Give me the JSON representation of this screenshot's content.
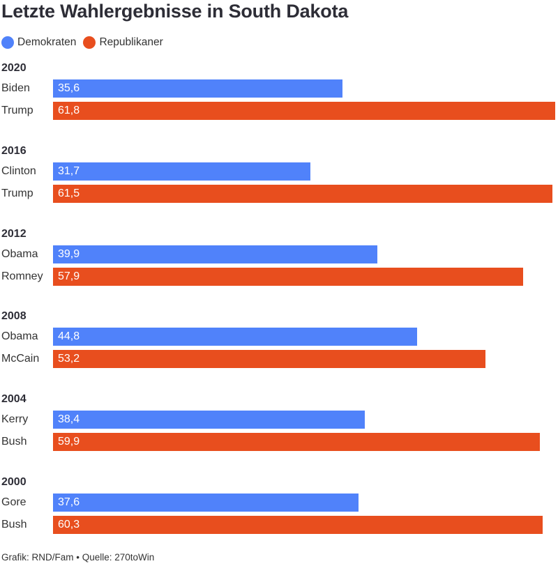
{
  "title": "Letzte Wahlergebnisse in South Dakota",
  "legend": [
    {
      "name": "Demokraten",
      "color": "#5082fa"
    },
    {
      "name": "Republikaner",
      "color": "#e84e1e"
    }
  ],
  "chart_data": {
    "type": "bar",
    "orientation": "horizontal",
    "xlim": [
      0,
      62
    ],
    "groups": [
      {
        "year": "2020",
        "bars": [
          {
            "candidate": "Biden",
            "party": "Demokraten",
            "value": 35.6,
            "label": "35,6"
          },
          {
            "candidate": "Trump",
            "party": "Republikaner",
            "value": 61.8,
            "label": "61,8"
          }
        ]
      },
      {
        "year": "2016",
        "bars": [
          {
            "candidate": "Clinton",
            "party": "Demokraten",
            "value": 31.7,
            "label": "31,7"
          },
          {
            "candidate": "Trump",
            "party": "Republikaner",
            "value": 61.5,
            "label": "61,5"
          }
        ]
      },
      {
        "year": "2012",
        "bars": [
          {
            "candidate": "Obama",
            "party": "Demokraten",
            "value": 39.9,
            "label": "39,9"
          },
          {
            "candidate": "Romney",
            "party": "Republikaner",
            "value": 57.9,
            "label": "57,9"
          }
        ]
      },
      {
        "year": "2008",
        "bars": [
          {
            "candidate": "Obama",
            "party": "Demokraten",
            "value": 44.8,
            "label": "44,8"
          },
          {
            "candidate": "McCain",
            "party": "Republikaner",
            "value": 53.2,
            "label": "53,2"
          }
        ]
      },
      {
        "year": "2004",
        "bars": [
          {
            "candidate": "Kerry",
            "party": "Demokraten",
            "value": 38.4,
            "label": "38,4"
          },
          {
            "candidate": "Bush",
            "party": "Republikaner",
            "value": 59.9,
            "label": "59,9"
          }
        ]
      },
      {
        "year": "2000",
        "bars": [
          {
            "candidate": "Gore",
            "party": "Demokraten",
            "value": 37.6,
            "label": "37,6"
          },
          {
            "candidate": "Bush",
            "party": "Republikaner",
            "value": 60.3,
            "label": "60,3"
          }
        ]
      }
    ]
  },
  "footer": "Grafik: RND/Fam • Quelle: 270toWin"
}
